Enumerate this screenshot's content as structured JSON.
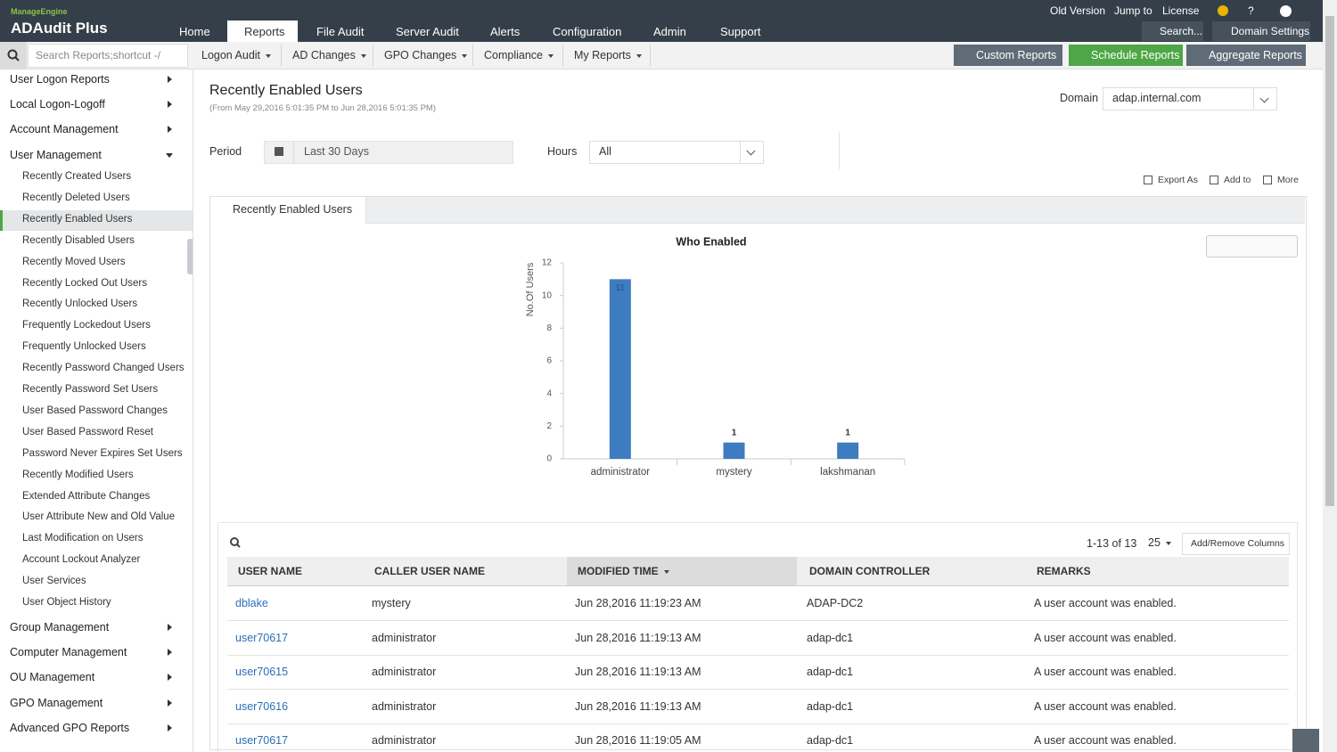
{
  "header": {
    "brand": "ManageEngine",
    "product": "ADAudit Plus",
    "tabs": [
      "Home",
      "Reports",
      "File Audit",
      "Server Audit",
      "Alerts",
      "Configuration",
      "Admin",
      "Support"
    ],
    "active_tab": 1,
    "top_links": [
      "Old Version",
      "Jump to",
      "License",
      "?"
    ],
    "search": "Search...",
    "domain_settings": "Domain Settings"
  },
  "toolbar": {
    "search_placeholder": "Search Reports;shortcut -/",
    "menus": [
      "Logon Audit",
      "AD Changes",
      "GPO Changes",
      "Compliance",
      "My Reports"
    ],
    "buttons": [
      "Custom Reports",
      "Schedule Reports",
      "Aggregate Reports"
    ]
  },
  "sidebar": {
    "groups_before": [
      "User Logon Reports",
      "Local Logon-Logoff",
      "Account Management"
    ],
    "current": {
      "title": "User Management",
      "active": 2,
      "items": [
        "Recently Created Users",
        "Recently Deleted Users",
        "Recently Enabled Users",
        "Recently Disabled Users",
        "Recently Moved Users",
        "Recently Locked Out Users",
        "Recently Unlocked Users",
        "Frequently Lockedout Users",
        "Frequently Unlocked Users",
        "Recently Password Changed Users",
        "Recently Password Set Users",
        "User Based Password Changes",
        "User Based Password Reset",
        "Password Never Expires Set Users",
        "Recently Modified Users",
        "Extended Attribute Changes",
        "User Attribute New and Old Value",
        "Last Modification on Users",
        "Account Lockout Analyzer",
        "User Services",
        "User Object History"
      ]
    },
    "groups_after": [
      "Group Management",
      "Computer Management",
      "OU Management",
      "GPO Management",
      "Advanced GPO Reports"
    ]
  },
  "report": {
    "title": "Recently Enabled Users",
    "range": "(From May 29,2016 5:01:35 PM to Jun 28,2016 5:01:35 PM)",
    "domain_label": "Domain",
    "domain": "adap.internal.com",
    "period_label": "Period",
    "period": "Last 30 Days",
    "hours_label": "Hours",
    "hours": "All",
    "actions": [
      "Export As",
      "Add to",
      "More"
    ],
    "tab": "Recently Enabled Users"
  },
  "chart_data": {
    "type": "bar",
    "title": "Who Enabled",
    "y_label": "No.Of Users",
    "categories": [
      "administrator",
      "mystery",
      "lakshmanan"
    ],
    "values": [
      11,
      1,
      1
    ],
    "color": "#3d7cc0",
    "ylim": [
      0,
      12
    ],
    "yticks": [
      0,
      2,
      4,
      6,
      8,
      10,
      12
    ]
  },
  "table": {
    "pagination": "1-13 of 13",
    "page_size": "25",
    "add_remove": "Add/Remove Columns",
    "columns": [
      "USER NAME",
      "CALLER USER NAME",
      "MODIFIED TIME",
      "DOMAIN CONTROLLER",
      "REMARKS"
    ],
    "sort_column": 2,
    "rows": [
      [
        "dblake",
        "mystery",
        "Jun 28,2016 11:19:23 AM",
        "ADAP-DC2",
        "A user account was enabled."
      ],
      [
        "user70617",
        "administrator",
        "Jun 28,2016 11:19:13 AM",
        "adap-dc1",
        "A user account was enabled."
      ],
      [
        "user70615",
        "administrator",
        "Jun 28,2016 11:19:13 AM",
        "adap-dc1",
        "A user account was enabled."
      ],
      [
        "user70616",
        "administrator",
        "Jun 28,2016 11:19:13 AM",
        "adap-dc1",
        "A user account was enabled."
      ],
      [
        "user70617",
        "administrator",
        "Jun 28,2016 11:19:05 AM",
        "adap-dc1",
        "A user account was enabled."
      ]
    ]
  }
}
